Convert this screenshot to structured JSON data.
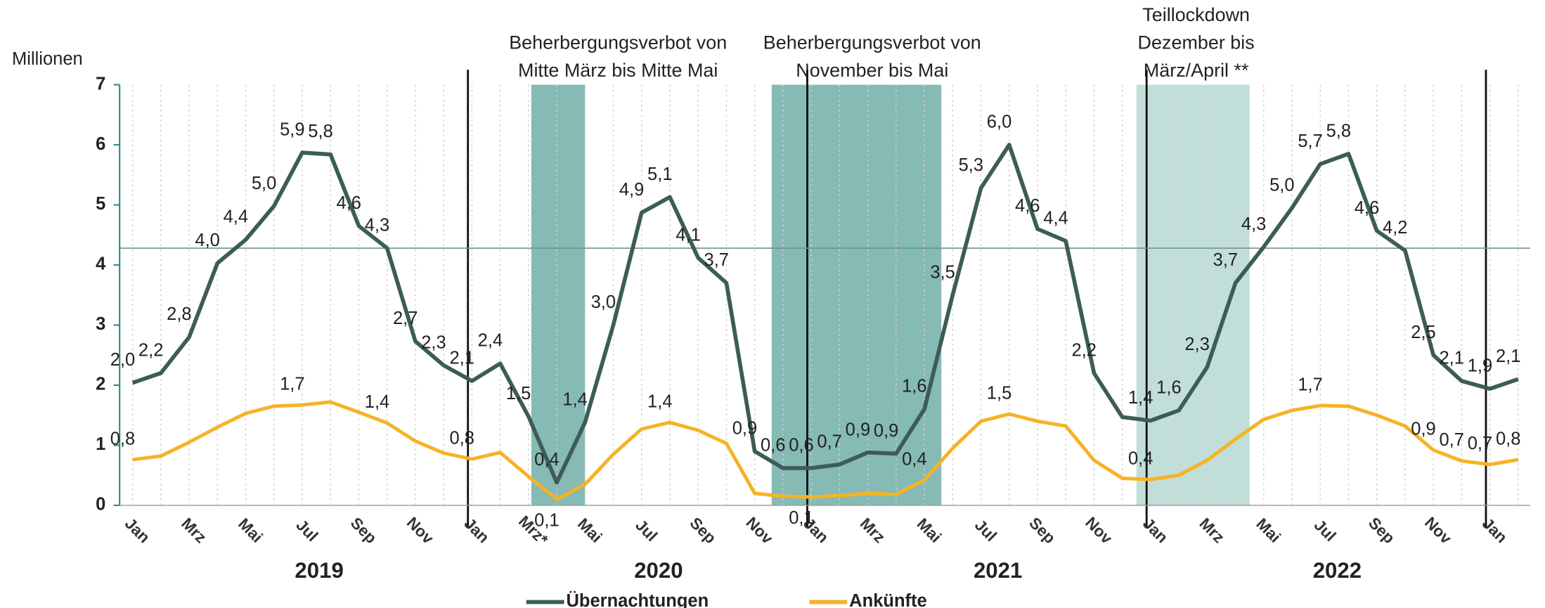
{
  "chart_data": {
    "type": "line",
    "y_axis_label": "Millionen",
    "categories": [
      "Jan",
      null,
      "Mrz",
      null,
      "Mai",
      null,
      "Jul",
      null,
      "Sep",
      null,
      "Nov",
      null,
      "Jan",
      null,
      "Mrz*",
      null,
      "Mai",
      null,
      "Jul",
      null,
      "Sep",
      null,
      "Nov",
      null,
      "Jan",
      null,
      "Mrz",
      null,
      "Mai",
      null,
      "Jul",
      null,
      "Sep",
      null,
      "Nov",
      null,
      "Jan",
      null,
      "Mrz",
      null,
      "Mai",
      null,
      "Jul",
      null,
      "Sep",
      null,
      "Nov",
      null,
      "Jan",
      null
    ],
    "years": [
      "2019",
      "2020",
      "2021",
      "2022"
    ],
    "series": [
      {
        "name": "Übernachtungen",
        "color": "#3d5c58",
        "values": [
          2.04,
          2.2,
          2.8,
          4.03,
          4.42,
          4.98,
          5.87,
          5.84,
          4.65,
          4.28,
          2.73,
          2.33,
          2.07,
          2.36,
          1.48,
          0.38,
          1.38,
          3.0,
          4.87,
          5.13,
          4.12,
          3.7,
          0.9,
          0.62,
          0.62,
          0.68,
          0.88,
          0.86,
          1.6,
          3.5,
          5.28,
          6.0,
          4.6,
          4.4,
          2.2,
          1.47,
          1.41,
          1.58,
          2.3,
          3.7,
          4.3,
          4.95,
          5.68,
          5.85,
          4.57,
          4.24,
          2.5,
          2.07,
          1.94,
          2.1
        ],
        "value_labels": [
          "2,0",
          "2,2",
          "2,8",
          "4,0",
          "4,4",
          "5,0",
          "5,9",
          "5,8",
          "4,6",
          "4,3",
          "2,7",
          "2,3",
          "2,1",
          "2,4",
          "1,5",
          "0,4",
          "1,4",
          "3,0",
          "4,9",
          "5,1",
          "4,1",
          "3,7",
          "0,9",
          "0,6",
          "0,6",
          "0,7",
          "0,9",
          "0,9",
          "1,6",
          "3,5",
          "5,3",
          "6,0",
          "4,6",
          "4,4",
          "2,2",
          null,
          "1,4",
          "1,6",
          "2,3",
          "3,7",
          "4,3",
          "5,0",
          "5,7",
          "5,8",
          "4,6",
          "4,2",
          "2,5",
          "2,1",
          "1,9",
          "2,1"
        ]
      },
      {
        "name": "Ankünfte",
        "color": "#f5b324",
        "values": [
          0.76,
          0.82,
          1.05,
          1.3,
          1.53,
          1.65,
          1.67,
          1.72,
          1.55,
          1.37,
          1.07,
          0.87,
          0.77,
          0.88,
          0.48,
          0.1,
          0.35,
          0.85,
          1.27,
          1.38,
          1.25,
          1.03,
          0.2,
          0.15,
          0.14,
          0.16,
          0.2,
          0.18,
          0.42,
          0.95,
          1.4,
          1.52,
          1.4,
          1.32,
          0.75,
          0.45,
          0.43,
          0.5,
          0.75,
          1.1,
          1.43,
          1.58,
          1.66,
          1.65,
          1.5,
          1.32,
          0.92,
          0.74,
          0.68,
          0.76
        ],
        "value_labels": [
          "0,8",
          null,
          null,
          null,
          null,
          null,
          "1,7",
          null,
          null,
          "1,4",
          null,
          null,
          "0,8",
          null,
          null,
          "0,1",
          null,
          null,
          null,
          "1,4",
          null,
          null,
          null,
          null,
          "0,1",
          null,
          null,
          null,
          "0,4",
          null,
          null,
          "1,5",
          null,
          null,
          null,
          null,
          "0,4",
          null,
          null,
          null,
          null,
          null,
          "1,7",
          null,
          null,
          null,
          "0,9",
          "0,7",
          "0,7",
          "0,8"
        ]
      }
    ],
    "reference_line": 4.28,
    "annotations": [
      {
        "lines": [
          "Beherbergungsverbot von",
          "Mitte März bis Mitte Mai"
        ]
      },
      {
        "lines": [
          "Beherbergungsverbot von",
          "November bis Mai"
        ]
      },
      {
        "lines": [
          "Teillockdown",
          "Dezember bis",
          "März/April **"
        ]
      }
    ],
    "ylim": [
      0,
      7
    ],
    "yticks": [
      0,
      1,
      2,
      3,
      4,
      5,
      6,
      7
    ]
  }
}
